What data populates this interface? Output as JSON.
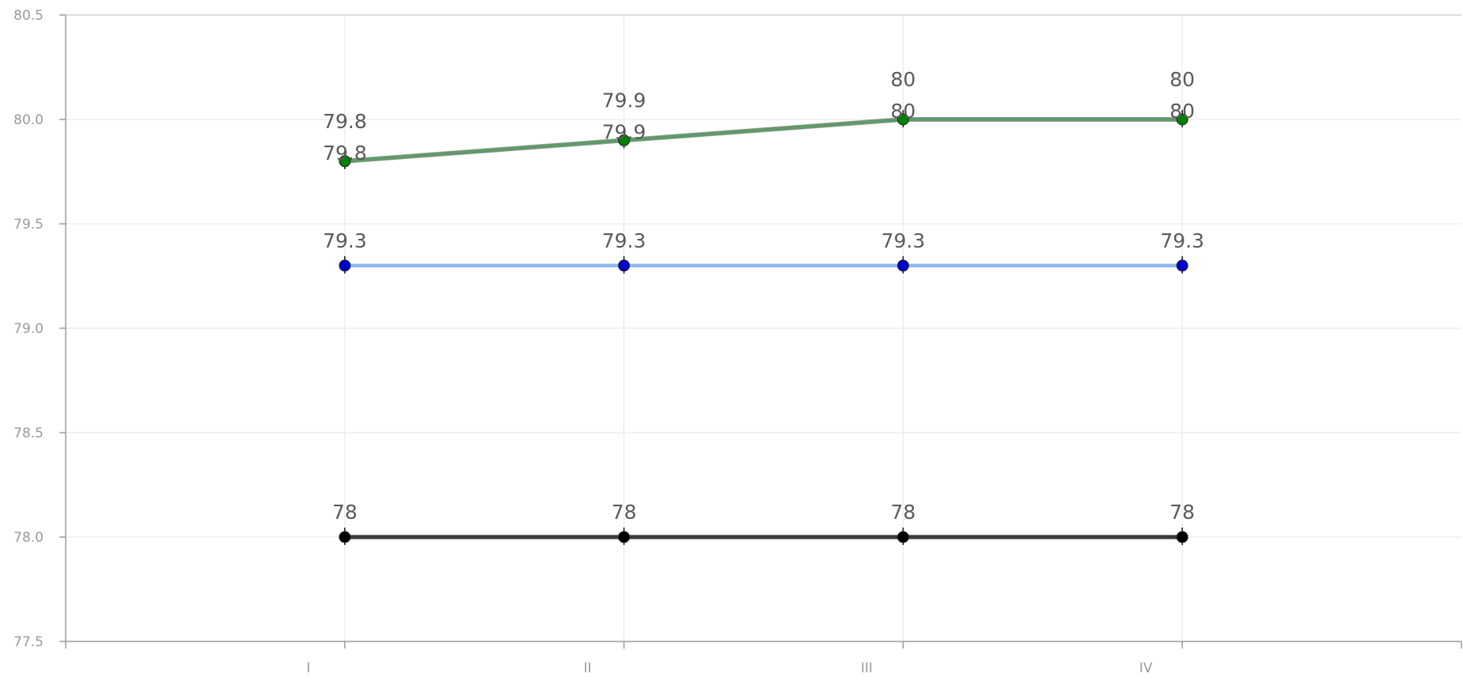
{
  "chart_data": {
    "type": "line",
    "categories": [
      "I",
      "II",
      "III",
      "IV"
    ],
    "ylim": [
      77.5,
      80.5
    ],
    "yticks": [
      "77.5",
      "78.0",
      "78.5",
      "79.0",
      "79.5",
      "80.0",
      "80.5"
    ],
    "grid": true,
    "series": [
      {
        "values": [
          79.8,
          79.9,
          80,
          80
        ],
        "labels": [
          "79.8",
          "79.9",
          "80",
          "80"
        ],
        "line_color": "#5f9a6a",
        "marker_color": "#008000",
        "duplicate_labels": true
      },
      {
        "values": [
          79.3,
          79.3,
          79.3,
          79.3
        ],
        "labels": [
          "79.3",
          "79.3",
          "79.3",
          "79.3"
        ],
        "line_color": "#8fb8f0",
        "marker_color": "#0000cc",
        "duplicate_labels": false
      },
      {
        "values": [
          78,
          78,
          78,
          78
        ],
        "labels": [
          "78",
          "78",
          "78",
          "78"
        ],
        "line_color": "#3a3a3a",
        "marker_color": "#000000",
        "duplicate_labels": false
      }
    ]
  }
}
